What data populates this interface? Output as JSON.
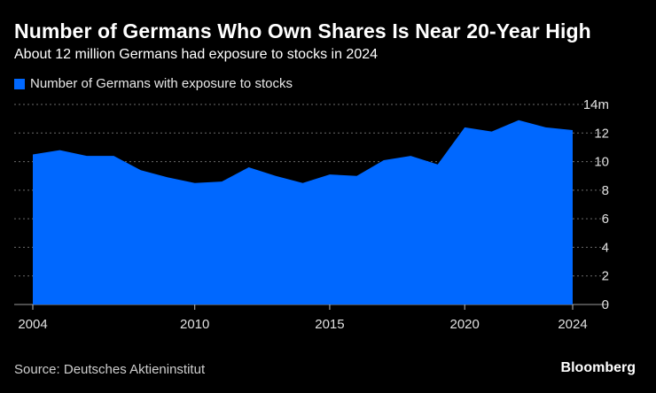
{
  "colors": {
    "background": "#000000",
    "area": "#0068ff",
    "grid": "#6b6b6b",
    "axis_text": "#e0e0e0"
  },
  "chart_data": {
    "type": "area",
    "title": "Number of Germans Who Own Shares Is Near 20-Year High",
    "subtitle": "About 12 million Germans had exposure to stocks in 2024",
    "legend": [
      "Number of Germans with exposure to stocks"
    ],
    "legend_position": "top-left",
    "xlabel": "",
    "ylabel": "",
    "y_unit_suffix": "m",
    "xlim": [
      2004,
      2024
    ],
    "ylim": [
      0,
      14
    ],
    "x_ticks": [
      2004,
      2010,
      2015,
      2020,
      2024
    ],
    "y_ticks": [
      0,
      2,
      4,
      6,
      8,
      10,
      12,
      14
    ],
    "grid": true,
    "series": [
      {
        "name": "Number of Germans with exposure to stocks",
        "x": [
          2004,
          2005,
          2006,
          2007,
          2008,
          2009,
          2010,
          2011,
          2012,
          2013,
          2014,
          2015,
          2016,
          2017,
          2018,
          2019,
          2020,
          2021,
          2022,
          2023,
          2024
        ],
        "values": [
          10.5,
          10.8,
          10.4,
          10.4,
          9.4,
          8.9,
          8.5,
          8.6,
          9.6,
          9.0,
          8.5,
          9.1,
          9.0,
          10.1,
          10.4,
          9.8,
          12.4,
          12.1,
          12.9,
          12.4,
          12.2
        ]
      }
    ]
  },
  "footer": {
    "source": "Source: Deutsches Aktieninstitut",
    "brand": "Bloomberg"
  }
}
